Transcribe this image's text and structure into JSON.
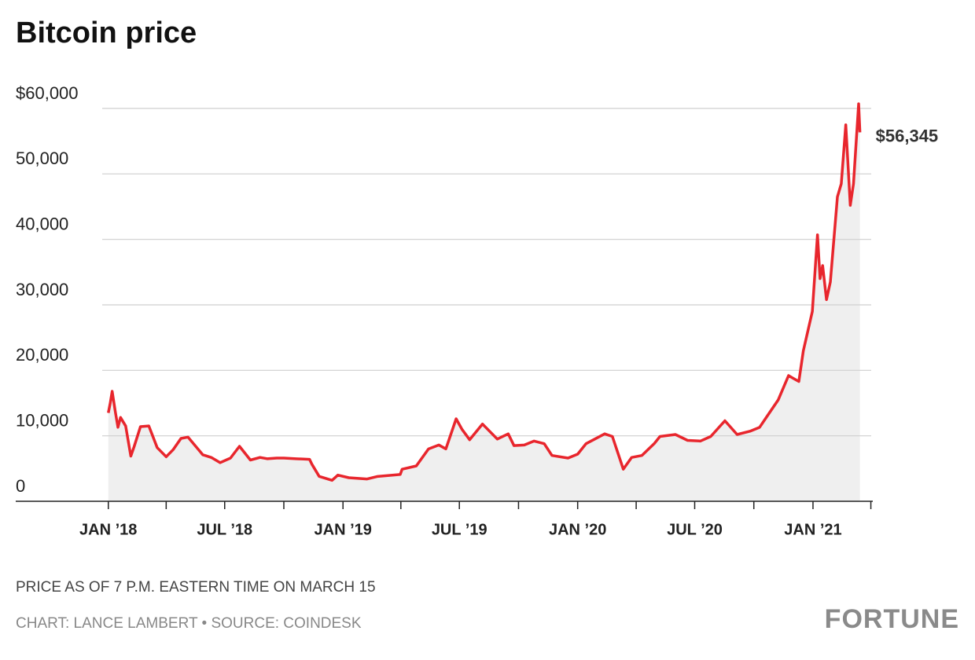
{
  "chart_data": {
    "type": "line",
    "title": "Bitcoin price",
    "x": [
      "2018-01-01",
      "2018-01-04",
      "2018-01-07",
      "2018-01-12",
      "2018-01-16",
      "2018-01-20",
      "2018-01-28",
      "2018-02-05",
      "2018-02-10",
      "2018-02-20",
      "2018-03-05",
      "2018-03-18",
      "2018-04-01",
      "2018-04-12",
      "2018-04-24",
      "2018-05-05",
      "2018-05-28",
      "2018-06-10",
      "2018-06-24",
      "2018-07-10",
      "2018-07-24",
      "2018-08-10",
      "2018-08-25",
      "2018-09-05",
      "2018-09-20",
      "2018-10-01",
      "2018-10-20",
      "2018-11-10",
      "2018-11-14",
      "2018-11-25",
      "2018-12-15",
      "2018-12-24",
      "2019-01-10",
      "2019-02-07",
      "2019-02-24",
      "2019-03-31",
      "2019-04-03",
      "2019-04-25",
      "2019-05-14",
      "2019-05-30",
      "2019-06-10",
      "2019-06-26",
      "2019-07-05",
      "2019-07-17",
      "2019-08-06",
      "2019-08-29",
      "2019-09-15",
      "2019-09-24",
      "2019-10-10",
      "2019-10-25",
      "2019-11-10",
      "2019-11-22",
      "2019-12-17",
      "2020-01-01",
      "2020-01-14",
      "2020-02-12",
      "2020-02-24",
      "2020-03-12",
      "2020-03-25",
      "2020-04-10",
      "2020-04-29",
      "2020-05-08",
      "2020-06-01",
      "2020-06-20",
      "2020-07-10",
      "2020-07-26",
      "2020-08-17",
      "2020-09-05",
      "2020-09-25",
      "2020-10-10",
      "2020-10-21",
      "2020-11-08",
      "2020-11-24",
      "2020-12-01",
      "2020-12-10",
      "2020-12-17",
      "2020-12-31",
      "2021-01-08",
      "2021-01-12",
      "2021-01-16",
      "2021-01-22",
      "2021-01-28",
      "2021-02-08",
      "2021-02-14",
      "2021-02-21",
      "2021-02-28",
      "2021-03-05",
      "2021-03-13",
      "2021-03-15"
    ],
    "series": [
      {
        "name": "Bitcoin price",
        "color": "#e8262d",
        "values": [
          13500,
          15000,
          16800,
          13600,
          11300,
          12800,
          11500,
          6900,
          8300,
          11400,
          11500,
          8200,
          6800,
          7900,
          9600,
          9800,
          7100,
          6700,
          5900,
          6600,
          8400,
          6300,
          6700,
          6500,
          6600,
          6600,
          6500,
          6400,
          5600,
          3800,
          3200,
          4000,
          3600,
          3400,
          3800,
          4100,
          4900,
          5400,
          8000,
          8600,
          8000,
          12600,
          11000,
          9400,
          11800,
          9500,
          10300,
          8500,
          8600,
          9200,
          8800,
          7000,
          6600,
          7200,
          8800,
          10300,
          9900,
          4900,
          6700,
          7000,
          8800,
          9900,
          10200,
          9300,
          9200,
          9900,
          12300,
          10200,
          10700,
          11300,
          12900,
          15500,
          19200,
          18800,
          18300,
          23000,
          29000,
          40700,
          34000,
          36000,
          30800,
          33500,
          46500,
          48500,
          57500,
          45200,
          48500,
          60700,
          56345
        ]
      }
    ],
    "annotations": [
      {
        "x": "2021-03-15",
        "y": 56345,
        "label": "$56,345"
      }
    ],
    "xlim": [
      "2017-08-10",
      "2021-04-04"
    ],
    "xticks": [
      {
        "value": "2018-01-01",
        "label": "JAN ’18"
      },
      {
        "value": "2018-07-01",
        "label": "JUL ’18"
      },
      {
        "value": "2019-01-01",
        "label": "JAN ’19"
      },
      {
        "value": "2019-07-01",
        "label": "JUL ’19"
      },
      {
        "value": "2020-01-01",
        "label": "JAN ’20"
      },
      {
        "value": "2020-07-01",
        "label": "JUL ’20"
      },
      {
        "value": "2021-01-01",
        "label": "JAN ’21"
      }
    ],
    "xminorticks": [
      "2018-04-01",
      "2018-10-01",
      "2019-04-01",
      "2019-10-01",
      "2020-04-01",
      "2020-10-01",
      "2021-04-01"
    ],
    "ylim": [
      0,
      60000
    ],
    "yticks": [
      0,
      {
        "value": 10000,
        "label": "10,000"
      },
      {
        "value": 20000,
        "label": "20,000"
      },
      {
        "value": 30000,
        "label": "30,000"
      },
      {
        "value": 40000,
        "label": "40,000"
      },
      {
        "value": 50000,
        "label": "50,000"
      },
      {
        "value": 60000,
        "label": "$60,000"
      }
    ],
    "grid": true,
    "area_color": "#efefef",
    "notes": [
      "PRICE AS OF 7 P.M. EASTERN TIME ON MARCH 15",
      "CHART: LANCE LAMBERT • SOURCE: COINDESK"
    ],
    "brand": "FORTUNE"
  }
}
